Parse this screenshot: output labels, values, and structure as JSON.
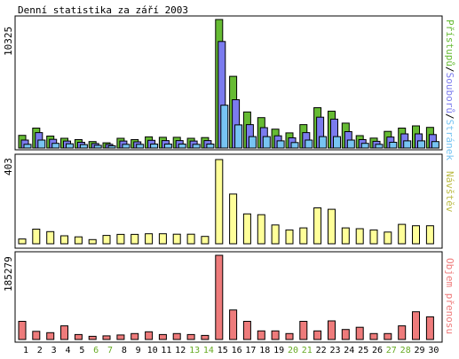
{
  "title": "Denní statistika za září 2003",
  "days": [
    "1",
    "2",
    "3",
    "4",
    "5",
    "6",
    "7",
    "8",
    "9",
    "10",
    "11",
    "12",
    "13",
    "14",
    "15",
    "16",
    "17",
    "18",
    "19",
    "20",
    "21",
    "22",
    "23",
    "24",
    "25",
    "26",
    "27",
    "28",
    "29",
    "30"
  ],
  "weekend_days": [
    "6",
    "7",
    "13",
    "14",
    "20",
    "21",
    "27",
    "28"
  ],
  "colors": {
    "pristupu": "#66bb33",
    "souboru": "#7b7bee",
    "stranek": "#77c4f2",
    "navstev": "#ffff99",
    "objem": "#ee7b7b",
    "weekend_label": "#66aa22",
    "weekday_label": "#000000"
  },
  "chart_data": [
    {
      "type": "bar",
      "ymax_label": "10325",
      "legend": [
        {
          "text": "Přístupů",
          "color": "#66bb33"
        },
        {
          "text": "/",
          "color": "#000000"
        },
        {
          "text": "Souborů",
          "color": "#7b7bee"
        },
        {
          "text": "/",
          "color": "#000000"
        },
        {
          "text": "Stránek",
          "color": "#77c4f2"
        }
      ],
      "ylim": [
        0,
        10325
      ],
      "series": [
        {
          "name": "Přístupů",
          "values": [
            1020,
            1600,
            960,
            780,
            680,
            520,
            420,
            780,
            680,
            900,
            860,
            860,
            780,
            840,
            10325,
            5760,
            2900,
            2440,
            1520,
            1220,
            1880,
            3240,
            2960,
            2000,
            1000,
            800,
            1340,
            1600,
            1780,
            1660
          ]
        },
        {
          "name": "Souborů",
          "values": [
            640,
            1240,
            700,
            560,
            460,
            360,
            300,
            560,
            500,
            620,
            600,
            600,
            560,
            600,
            8560,
            3880,
            1880,
            1640,
            980,
            820,
            1240,
            2480,
            2320,
            1320,
            680,
            540,
            880,
            1140,
            1140,
            1080
          ]
        },
        {
          "name": "Stránek",
          "values": [
            300,
            640,
            380,
            340,
            280,
            220,
            180,
            300,
            300,
            320,
            320,
            320,
            300,
            320,
            3440,
            1860,
            920,
            920,
            580,
            440,
            640,
            920,
            920,
            640,
            380,
            300,
            460,
            580,
            580,
            520
          ]
        }
      ]
    },
    {
      "type": "bar",
      "ymax_label": "403",
      "legend": [
        {
          "text": "Návštěv",
          "color": "#bbbb44"
        }
      ],
      "ylim": [
        0,
        403
      ],
      "series": [
        {
          "name": "Návštěv",
          "values": [
            23,
            70,
            58,
            38,
            33,
            20,
            40,
            45,
            45,
            48,
            48,
            46,
            46,
            35,
            403,
            238,
            143,
            139,
            90,
            66,
            76,
            172,
            165,
            76,
            72,
            66,
            56,
            93,
            86,
            86
          ]
        }
      ]
    },
    {
      "type": "bar",
      "ymax_label": "185279",
      "legend": [
        {
          "text": "Objem přenosu",
          "color": "#ee7b7b"
        }
      ],
      "ylim": [
        0,
        185279
      ],
      "series": [
        {
          "name": "Objem přenosu",
          "values": [
            40000,
            18000,
            15000,
            30000,
            11000,
            7000,
            8000,
            10000,
            13000,
            17000,
            11000,
            13000,
            11000,
            9000,
            185279,
            65000,
            40000,
            19000,
            19000,
            13000,
            40000,
            19000,
            41000,
            22000,
            27000,
            13000,
            13000,
            30000,
            61000,
            50000
          ]
        }
      ]
    }
  ]
}
